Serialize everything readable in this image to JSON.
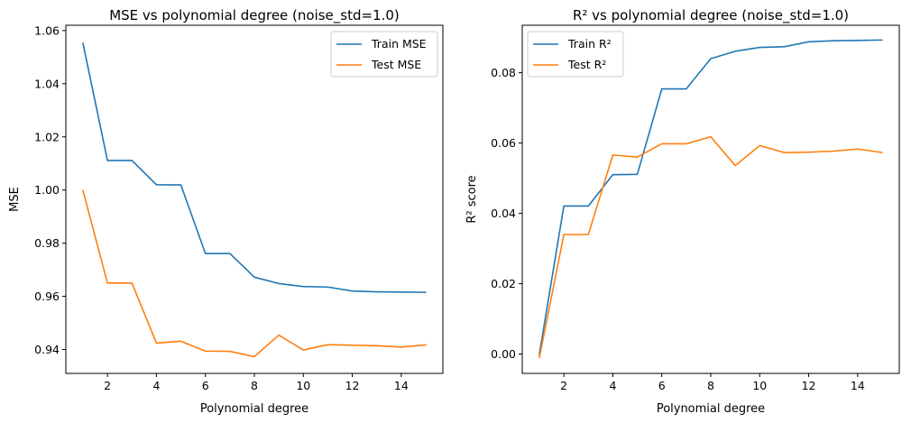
{
  "chart_data": [
    {
      "type": "line",
      "title": "MSE vs polynomial degree (noise_std=1.0)",
      "xlabel": "Polynomial degree",
      "ylabel": "MSE",
      "xlim": [
        0.3,
        15.7
      ],
      "ylim": [
        0.931,
        1.062
      ],
      "xticks": [
        "2",
        "4",
        "6",
        "8",
        "10",
        "12",
        "14"
      ],
      "yticks": [
        "0.94",
        "0.96",
        "0.98",
        "1.00",
        "1.02",
        "1.04",
        "1.06"
      ],
      "legend_position": "top-right",
      "x": [
        1,
        2,
        3,
        4,
        5,
        6,
        7,
        8,
        9,
        10,
        11,
        12,
        13,
        14,
        15
      ],
      "series": [
        {
          "name": "Train MSE",
          "color": "#1f77b4",
          "values": [
            1.0552,
            1.0111,
            1.0111,
            1.002,
            1.0019,
            0.9761,
            0.9761,
            0.9672,
            0.9648,
            0.9637,
            0.9635,
            0.962,
            0.9617,
            0.9616,
            0.9615
          ]
        },
        {
          "name": "Test MSE",
          "color": "#ff7f0e",
          "values": [
            0.9998,
            0.965,
            0.965,
            0.9424,
            0.9431,
            0.9394,
            0.9393,
            0.9373,
            0.9454,
            0.9398,
            0.9418,
            0.9416,
            0.9414,
            0.9409,
            0.9417
          ]
        }
      ]
    },
    {
      "type": "line",
      "title": "R² vs polynomial degree (noise_std=1.0)",
      "xlabel": "Polynomial degree",
      "ylabel": "R² score",
      "xlim": [
        0.3,
        15.7
      ],
      "ylim": [
        -0.0055,
        0.0935
      ],
      "xticks": [
        "2",
        "4",
        "6",
        "8",
        "10",
        "12",
        "14"
      ],
      "yticks": [
        "0.00",
        "0.02",
        "0.04",
        "0.06",
        "0.08"
      ],
      "legend_position": "top-left",
      "x": [
        1,
        2,
        3,
        4,
        5,
        6,
        7,
        8,
        9,
        10,
        11,
        12,
        13,
        14,
        15
      ],
      "series": [
        {
          "name": "Train R²",
          "color": "#1f77b4",
          "values": [
            0.0,
            0.0421,
            0.0421,
            0.051,
            0.0511,
            0.0754,
            0.0754,
            0.084,
            0.0861,
            0.0872,
            0.0874,
            0.0888,
            0.0891,
            0.0892,
            0.0893
          ]
        },
        {
          "name": "Test R²",
          "color": "#ff7f0e",
          "values": [
            -0.001,
            0.034,
            0.034,
            0.0566,
            0.056,
            0.0598,
            0.0598,
            0.0618,
            0.0536,
            0.0593,
            0.0573,
            0.0574,
            0.0577,
            0.0583,
            0.0573
          ]
        }
      ]
    }
  ]
}
